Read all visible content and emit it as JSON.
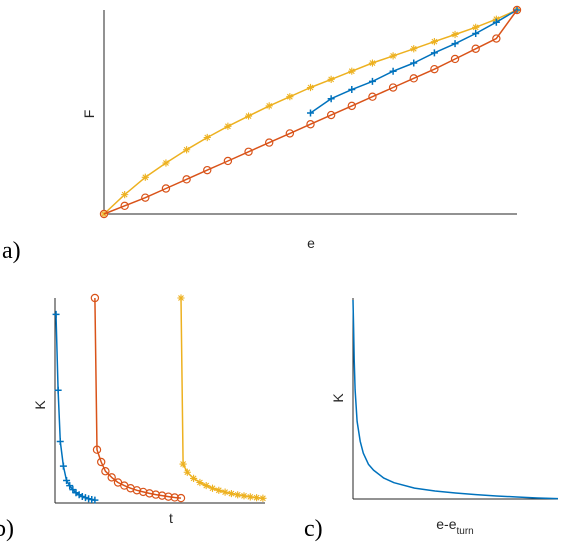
{
  "panel_labels": {
    "a": "a)",
    "b": "b)",
    "c": "c)"
  },
  "colors": {
    "blue": "#0072bd",
    "orange": "#d95319",
    "yellow": "#edb120"
  },
  "chart_data": [
    {
      "id": "a",
      "type": "line",
      "xlabel": "e",
      "ylabel": "F",
      "xlim": [
        0,
        1
      ],
      "ylim": [
        0,
        1
      ],
      "grid": false,
      "series": [
        {
          "color": "yellow",
          "marker": "asterisk",
          "x": [
            0,
            0.05,
            0.1,
            0.15,
            0.2,
            0.25,
            0.3,
            0.35,
            0.4,
            0.45,
            0.5,
            0.55,
            0.6,
            0.65,
            0.7,
            0.75,
            0.8,
            0.85,
            0.9,
            0.95,
            1.0
          ],
          "y": [
            0,
            0.095,
            0.18,
            0.25,
            0.315,
            0.375,
            0.43,
            0.48,
            0.53,
            0.575,
            0.62,
            0.66,
            0.7,
            0.74,
            0.775,
            0.81,
            0.845,
            0.88,
            0.915,
            0.955,
            1.0
          ]
        },
        {
          "color": "blue",
          "marker": "plus",
          "x": [
            0.5,
            0.55,
            0.6,
            0.65,
            0.7,
            0.75,
            0.8,
            0.85,
            0.9,
            0.95,
            1.0
          ],
          "y": [
            0.495,
            0.565,
            0.61,
            0.65,
            0.7,
            0.74,
            0.79,
            0.835,
            0.885,
            0.94,
            1.0
          ]
        },
        {
          "color": "orange",
          "marker": "circle",
          "x": [
            0,
            0.05,
            0.1,
            0.15,
            0.2,
            0.25,
            0.3,
            0.35,
            0.4,
            0.45,
            0.5,
            0.55,
            0.6,
            0.65,
            0.7,
            0.75,
            0.8,
            0.85,
            0.9,
            0.95,
            1.0
          ],
          "y": [
            0,
            0.04,
            0.08,
            0.125,
            0.17,
            0.215,
            0.26,
            0.305,
            0.35,
            0.395,
            0.44,
            0.485,
            0.53,
            0.575,
            0.62,
            0.665,
            0.71,
            0.76,
            0.81,
            0.86,
            1.0
          ]
        }
      ]
    },
    {
      "id": "b",
      "type": "line",
      "xlabel": "t",
      "ylabel": "K",
      "xlim": [
        0,
        1
      ],
      "ylim": [
        0,
        1
      ],
      "grid": false,
      "series": [
        {
          "color": "blue",
          "marker": "plus",
          "x": [
            0.005,
            0.015,
            0.025,
            0.04,
            0.055,
            0.07,
            0.085,
            0.1,
            0.115,
            0.13,
            0.145,
            0.16,
            0.175,
            0.19
          ],
          "y": [
            0.92,
            0.55,
            0.3,
            0.18,
            0.11,
            0.085,
            0.065,
            0.05,
            0.04,
            0.032,
            0.026,
            0.021,
            0.017,
            0.014
          ]
        },
        {
          "color": "orange",
          "marker": "circle",
          "x": [
            0.19,
            0.2,
            0.22,
            0.24,
            0.27,
            0.3,
            0.33,
            0.36,
            0.39,
            0.42,
            0.45,
            0.48,
            0.51,
            0.54,
            0.57,
            0.6
          ],
          "y": [
            1.0,
            0.26,
            0.2,
            0.155,
            0.125,
            0.1,
            0.085,
            0.072,
            0.062,
            0.054,
            0.047,
            0.041,
            0.036,
            0.031,
            0.027,
            0.024
          ]
        },
        {
          "color": "yellow",
          "marker": "asterisk",
          "x": [
            0.6,
            0.61,
            0.63,
            0.66,
            0.69,
            0.72,
            0.75,
            0.78,
            0.81,
            0.84,
            0.87,
            0.9,
            0.93,
            0.96,
            0.99
          ],
          "y": [
            1.0,
            0.19,
            0.15,
            0.12,
            0.1,
            0.085,
            0.072,
            0.062,
            0.053,
            0.046,
            0.04,
            0.035,
            0.03,
            0.026,
            0.023
          ]
        }
      ]
    },
    {
      "id": "c",
      "type": "line",
      "xlabel": "e-e",
      "xlabel_sub": "turn",
      "ylabel": "K",
      "xlim": [
        0,
        1
      ],
      "ylim": [
        0,
        1
      ],
      "grid": false,
      "series": [
        {
          "color": "blue",
          "marker": "none",
          "x": [
            0.0,
            0.003,
            0.006,
            0.01,
            0.02,
            0.035,
            0.05,
            0.075,
            0.1,
            0.15,
            0.2,
            0.3,
            0.4,
            0.5,
            0.6,
            0.7,
            0.8,
            0.9,
            1.0
          ],
          "y": [
            1.0,
            0.86,
            0.7,
            0.55,
            0.39,
            0.29,
            0.23,
            0.175,
            0.145,
            0.105,
            0.082,
            0.055,
            0.04,
            0.03,
            0.022,
            0.015,
            0.01,
            0.005,
            0.002
          ]
        }
      ]
    }
  ]
}
